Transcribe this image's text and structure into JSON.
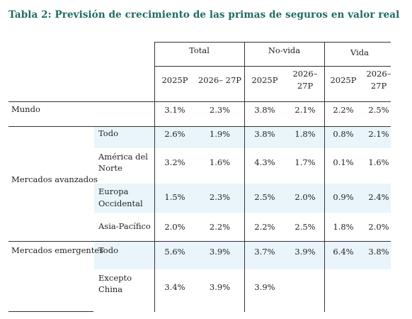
{
  "title": "Tabla 2: Previsión de crecimiento de las primas de seguros en valor real",
  "groups": [
    "Total",
    "No-vida",
    "Vida"
  ],
  "periods": {
    "y1": "2025P",
    "y2a": "2026–",
    "y2b": "27P",
    "y2_full": "2026– 27P"
  },
  "rows": {
    "mundo": {
      "label": "Mundo",
      "values": [
        "3.1%",
        "2.3%",
        "3.8%",
        "2.1%",
        "2.2%",
        "2.5%"
      ]
    },
    "avanzados": {
      "label": "Mercados avanzados",
      "todo": {
        "label": "Todo",
        "values": [
          "2.6%",
          "1.9%",
          "3.8%",
          "1.8%",
          "0.8%",
          "2.1%"
        ]
      },
      "america": {
        "label1": "América del",
        "label2": "Norte",
        "values": [
          "3.2%",
          "1.6%",
          "4.3%",
          "1.7%",
          "0.1%",
          "1.6%"
        ]
      },
      "europa": {
        "label1": "Europa",
        "label2": "Occidental",
        "values": [
          "1.5%",
          "2.3%",
          "2.5%",
          "2.0%",
          "0.9%",
          "2.4%"
        ]
      },
      "asia": {
        "label": "Asia-Pacífico",
        "values": [
          "2.0%",
          "2.2%",
          "2.2%",
          "2.5%",
          "1.8%",
          "2.0%"
        ]
      }
    },
    "emergentes": {
      "label": "Mercados emergentes",
      "todo": {
        "label": "Todo",
        "values": [
          "5.6%",
          "3.9%",
          "3.7%",
          "3.9%",
          "6.4%",
          "3.8%"
        ]
      },
      "excepto": {
        "label1": "Excepto",
        "label2": "China",
        "values": [
          "3.4%",
          "3.9%",
          "3.9%"
        ]
      }
    }
  }
}
